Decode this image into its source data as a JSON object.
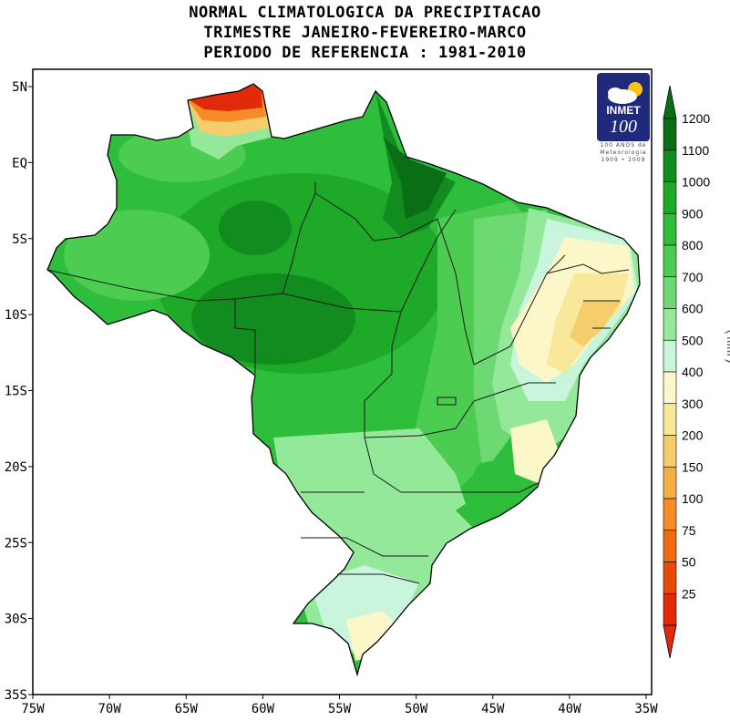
{
  "title": {
    "line1": "NORMAL CLIMATOLOGICA DA PRECIPITACAO",
    "line2": "TRIMESTRE JANEIRO-FEVEREIRO-MARCO",
    "line3": "PERIODO DE REFERENCIA : 1981-2010"
  },
  "axes": {
    "x_ticks": [
      "75W",
      "70W",
      "65W",
      "60W",
      "55W",
      "50W",
      "45W",
      "40W",
      "35W"
    ],
    "y_ticks": [
      "5N",
      "EQ",
      "5S",
      "10S",
      "15S",
      "20S",
      "25S",
      "30S",
      "35S"
    ]
  },
  "colorbar": {
    "unit": "(mm)",
    "levels": [
      "1200",
      "1100",
      "1000",
      "900",
      "800",
      "700",
      "600",
      "500",
      "400",
      "300",
      "200",
      "150",
      "100",
      "75",
      "50",
      "25"
    ],
    "colors": [
      "#0a6e14",
      "#128c1e",
      "#1eaa28",
      "#2ebe3c",
      "#4ccc50",
      "#6cd972",
      "#94e89a",
      "#c8f5dc",
      "#fcf7c8",
      "#f9e79a",
      "#f6cd6c",
      "#f5ae46",
      "#f58c28",
      "#f06c14",
      "#e84a0a",
      "#e02a0a"
    ]
  },
  "logo": {
    "brand": "INMET",
    "number": "100",
    "caption_line1": "100 ANOS de",
    "caption_line2": "Meteorologia",
    "caption_line3": "1909 • 2009",
    "color": "#1f2a7a"
  },
  "map": {
    "extent_lon": [
      -75,
      -34
    ],
    "extent_lat": [
      -35,
      7
    ],
    "regions_colors": {
      "amazon": "#2ebe3c",
      "amazon_dark": "#1eaa28",
      "mouth_amazon": "#0a6e14",
      "northeast_dry": "#f6cd6c",
      "northeast_mid": "#fcf7c8",
      "south": "#94e89a",
      "far_north": "#e02a0a"
    }
  }
}
